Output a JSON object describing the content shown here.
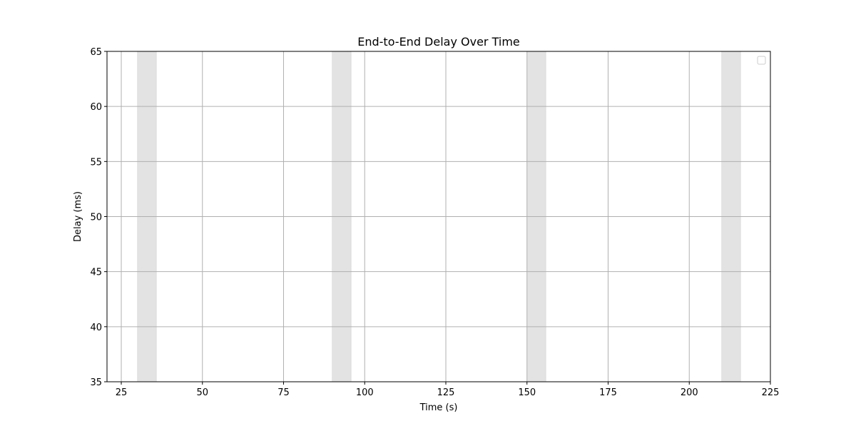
{
  "chart_data": {
    "type": "line",
    "title": "End-to-End Delay Over Time",
    "xlabel": "Time (s)",
    "ylabel": "Delay (ms)",
    "xlim": [
      20.6,
      225
    ],
    "ylim": [
      35,
      65
    ],
    "x_ticks": [
      25,
      50,
      75,
      100,
      125,
      150,
      175,
      200,
      225
    ],
    "y_ticks": [
      35,
      40,
      45,
      50,
      55,
      60,
      65
    ],
    "grid": true,
    "legend": {
      "position": "top-right",
      "entries": []
    },
    "series": [],
    "shaded_intervals": [
      {
        "x_start": 30,
        "x_end": 35.8
      },
      {
        "x_start": 90,
        "x_end": 95.8
      },
      {
        "x_start": 150,
        "x_end": 155.8
      },
      {
        "x_start": 210,
        "x_end": 215.8
      }
    ],
    "colors": {
      "shade": "#e3e3e3",
      "grid": "#b0b0b0",
      "axis": "#000000"
    }
  }
}
